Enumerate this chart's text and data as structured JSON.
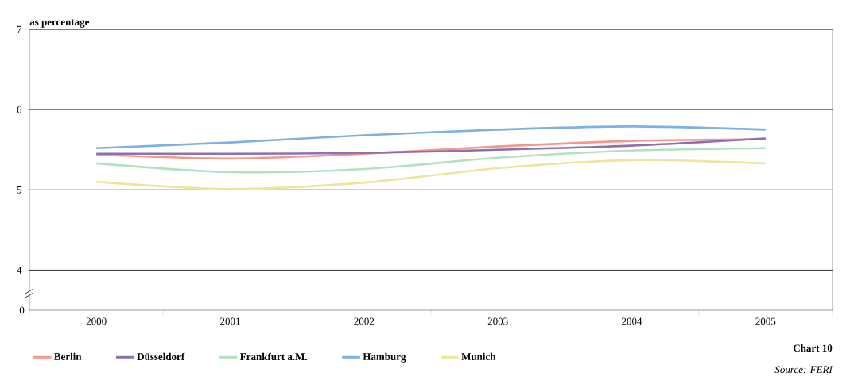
{
  "chart_data": {
    "type": "line",
    "ylabel": "as percentage",
    "categories": [
      "2000",
      "2001",
      "2002",
      "2003",
      "2004",
      "2005"
    ],
    "series": [
      {
        "name": "Berlin",
        "color": "#f4998a",
        "values": [
          5.44,
          5.39,
          5.45,
          5.54,
          5.61,
          5.63
        ]
      },
      {
        "name": "Düsseldorf",
        "color": "#8e70ad",
        "values": [
          5.45,
          5.45,
          5.46,
          5.5,
          5.55,
          5.64
        ]
      },
      {
        "name": "Frankfurt a.M.",
        "color": "#b5e0c0",
        "values": [
          5.33,
          5.22,
          5.26,
          5.4,
          5.49,
          5.52
        ]
      },
      {
        "name": "Hamburg",
        "color": "#7fb1e0",
        "values": [
          5.52,
          5.59,
          5.68,
          5.75,
          5.79,
          5.75
        ]
      },
      {
        "name": "Munich",
        "color": "#ede59a",
        "values": [
          5.1,
          5.01,
          5.09,
          5.27,
          5.37,
          5.33
        ]
      }
    ],
    "ylim": [
      3.5,
      7
    ],
    "yticks": [
      4,
      5,
      6,
      7
    ],
    "grid": "y",
    "legend": "bottom",
    "marker": "none",
    "line_style": "solid",
    "annotations": [
      "0",
      "Chart 10",
      "Source: FERI"
    ]
  }
}
